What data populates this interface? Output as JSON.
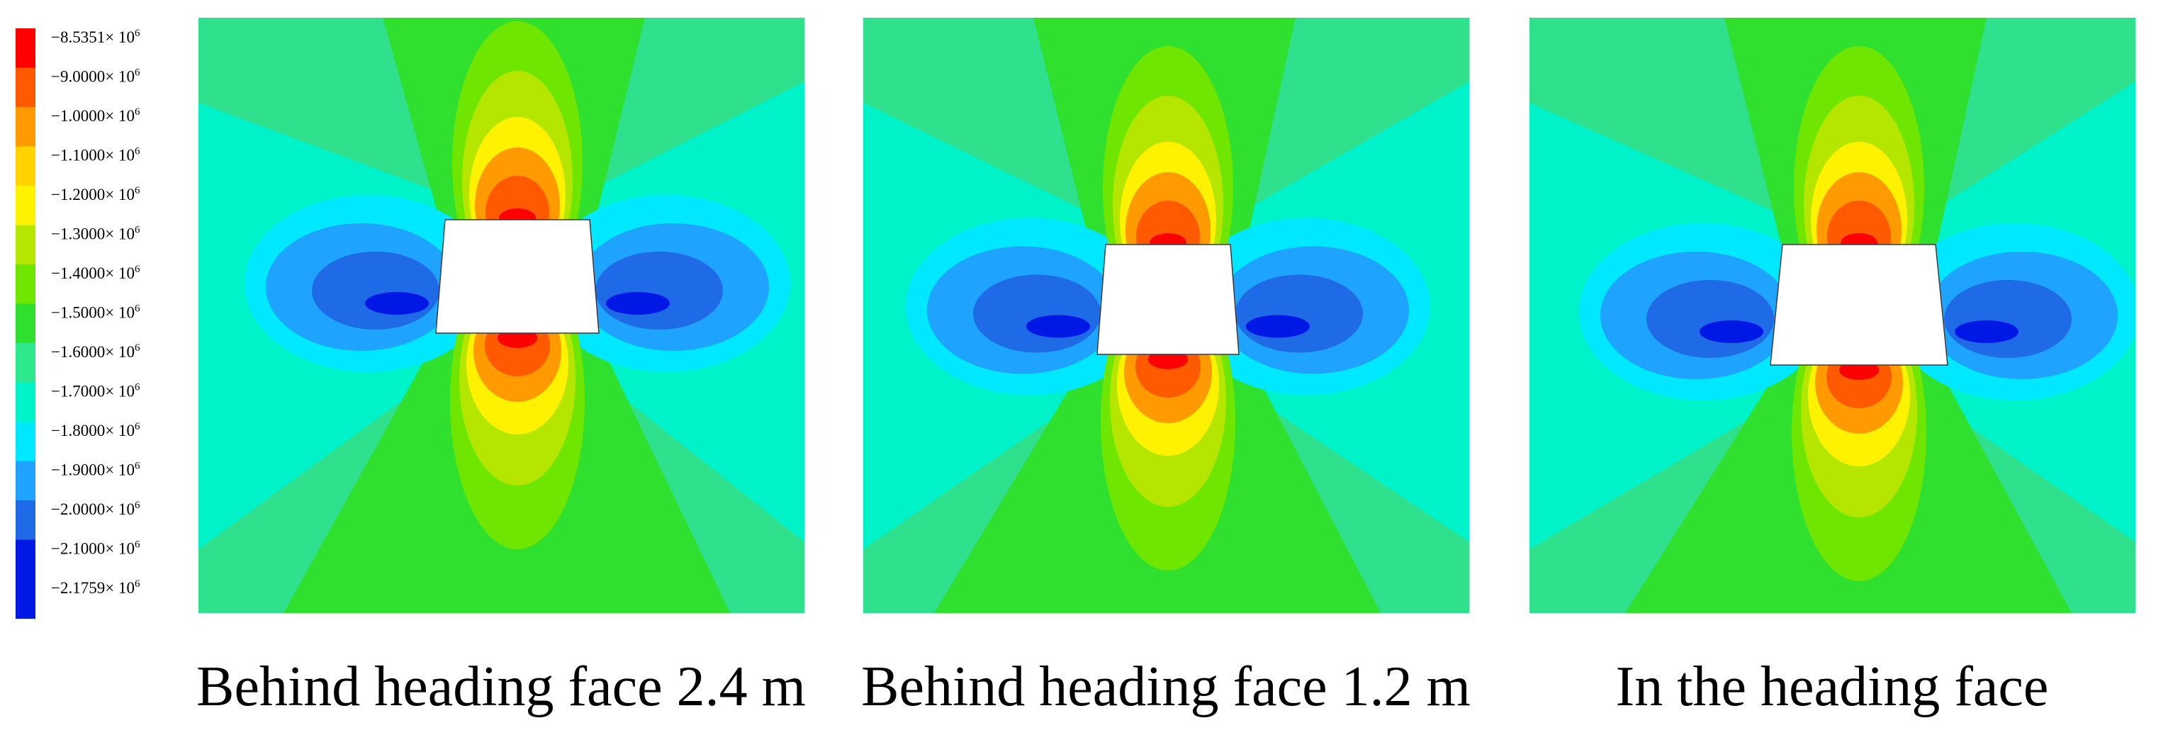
{
  "legend": {
    "items": [
      {
        "label": "−8.5351× 10",
        "exp": "6",
        "color": "#ff0000"
      },
      {
        "label": "−9.0000× 10",
        "exp": "6",
        "color": "#ff5a00"
      },
      {
        "label": "−1.0000× 10",
        "exp": "6",
        "color": "#ff9a00"
      },
      {
        "label": "−1.1000× 10",
        "exp": "6",
        "color": "#ffd200"
      },
      {
        "label": "−1.2000× 10",
        "exp": "6",
        "color": "#fff200"
      },
      {
        "label": "−1.3000× 10",
        "exp": "6",
        "color": "#b4e600"
      },
      {
        "label": "−1.4000× 10",
        "exp": "6",
        "color": "#6fe600"
      },
      {
        "label": "−1.5000× 10",
        "exp": "6",
        "color": "#2fe02f"
      },
      {
        "label": "−1.6000× 10",
        "exp": "6",
        "color": "#2ee88c"
      },
      {
        "label": "−1.7000× 10",
        "exp": "6",
        "color": "#00f2c8"
      },
      {
        "label": "−1.8000× 10",
        "exp": "6",
        "color": "#00e8ff"
      },
      {
        "label": "−1.9000× 10",
        "exp": "6",
        "color": "#1ea4ff"
      },
      {
        "label": "−2.0000× 10",
        "exp": "6",
        "color": "#1f6ae6"
      },
      {
        "label": "−2.1000× 10",
        "exp": "6",
        "color": "#0018e6"
      },
      {
        "label": "−2.1759× 10",
        "exp": "6",
        "color": "#0018e6"
      }
    ]
  },
  "panels": [
    {
      "caption": "Behind heading face 2.4 m"
    },
    {
      "caption": "Behind heading face 1.2 m"
    },
    {
      "caption": "In the heading face"
    }
  ],
  "colors": {
    "background_field": "#2fe08c",
    "green": "#2fe02f",
    "light_green": "#6fe600",
    "yellow_green": "#b4e600",
    "yellow": "#fff200",
    "orange": "#ff9a00",
    "red_orange": "#ff5a00",
    "red": "#ff0000",
    "cyan_green": "#00f2c8",
    "cyan": "#00e8ff",
    "light_blue": "#1ea4ff",
    "blue": "#1f6ae6",
    "deep_blue": "#0018e6",
    "opening": "#ffffff"
  }
}
